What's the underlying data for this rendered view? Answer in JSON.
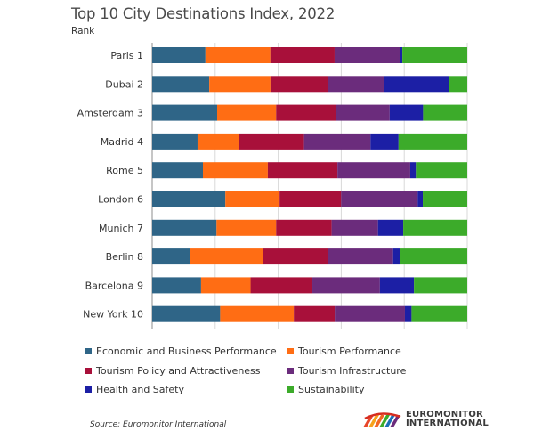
{
  "chart_data": {
    "type": "bar",
    "orientation": "horizontal",
    "stacked": "percent",
    "title": "Top 10 City Destinations Index, 2022",
    "subtitle": "Rank",
    "xlabel": "",
    "ylabel": "Rank",
    "xlim": [
      0,
      100
    ],
    "grid": true,
    "legend_position": "bottom",
    "categories": [
      "Paris 1",
      "Dubai 2",
      "Amsterdam 3",
      "Madrid 4",
      "Rome 5",
      "London 6",
      "Munich 7",
      "Berlin 8",
      "Barcelona 9",
      "New York 10"
    ],
    "series": [
      {
        "name": "Economic and Business Performance",
        "color": "#2f6587",
        "values": [
          16.9,
          18.1,
          20.6,
          14.4,
          16.1,
          23.2,
          20.4,
          12.1,
          15.5,
          21.6
        ]
      },
      {
        "name": "Tourism Performance",
        "color": "#ff6d14",
        "values": [
          20.6,
          19.4,
          18.7,
          13.2,
          20.6,
          17.2,
          18.9,
          22.9,
          15.7,
          23.4
        ]
      },
      {
        "name": "Tourism Policy and Attractiveness",
        "color": "#a8103a",
        "values": [
          20.4,
          18.2,
          19.1,
          20.6,
          22.1,
          19.5,
          17.6,
          20.6,
          19.6,
          13.0
        ]
      },
      {
        "name": "Tourism Infrastructure",
        "color": "#6b2c7c",
        "values": [
          20.9,
          17.9,
          16.9,
          21.1,
          23.1,
          24.3,
          14.7,
          20.8,
          21.4,
          22.3
        ]
      },
      {
        "name": "Health and Safety",
        "color": "#1c1fa5",
        "values": [
          0.6,
          20.5,
          10.6,
          8.9,
          1.8,
          1.6,
          8.0,
          2.3,
          10.8,
          2.1
        ]
      },
      {
        "name": "Sustainability",
        "color": "#3cab2a",
        "values": [
          20.6,
          5.8,
          14.0,
          21.8,
          16.3,
          14.1,
          20.3,
          21.2,
          16.9,
          17.7
        ]
      }
    ]
  },
  "footer": {
    "source": "Source: Euromonitor International",
    "logo_line1": "EUROMONITOR",
    "logo_line2": "INTERNATIONAL"
  }
}
